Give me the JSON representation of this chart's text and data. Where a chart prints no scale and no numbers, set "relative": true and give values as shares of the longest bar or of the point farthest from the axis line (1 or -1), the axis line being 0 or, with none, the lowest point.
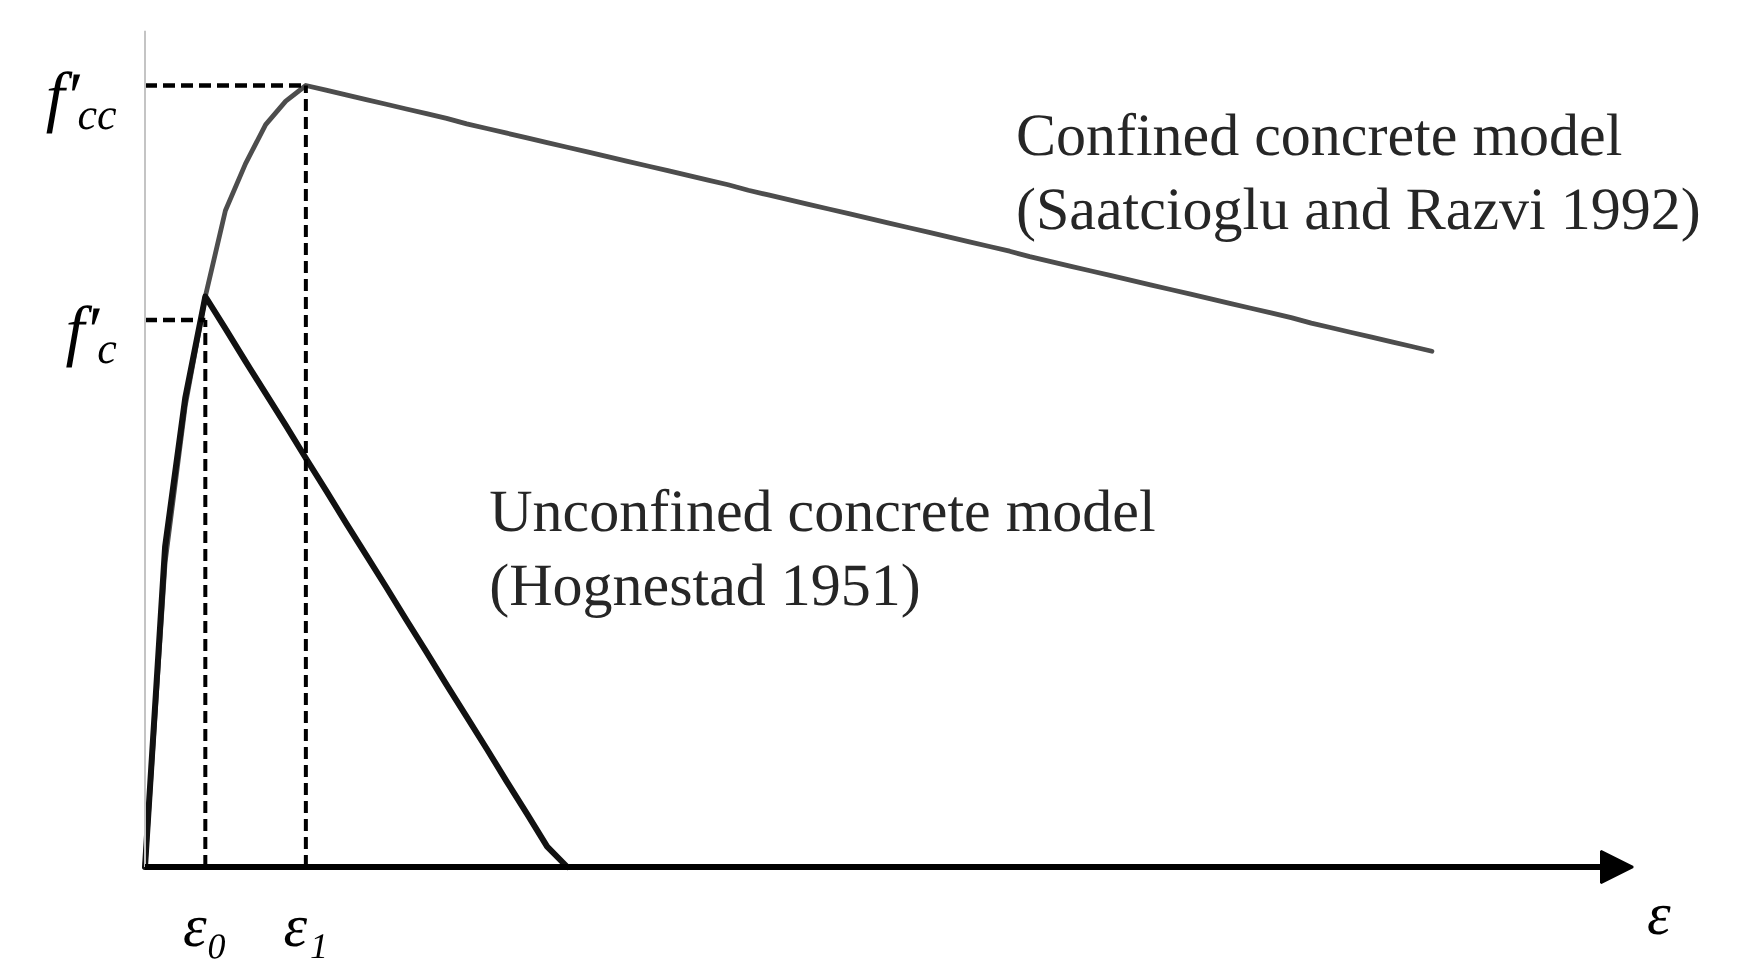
{
  "chart_data": {
    "type": "line",
    "relative": true,
    "xlabel": "ε",
    "line_style": "solid",
    "categories": [
      null,
      null,
      null,
      "ε₀",
      null,
      null,
      null,
      null,
      "ε₁",
      null,
      null,
      null,
      null,
      null,
      null,
      null,
      null,
      null,
      null,
      null,
      null,
      null,
      null,
      null,
      null,
      null,
      null,
      null,
      null,
      null,
      null,
      null,
      null,
      null,
      null,
      null,
      null,
      null,
      null,
      null,
      null,
      null,
      null,
      null,
      null,
      null,
      null,
      null,
      null,
      null,
      null,
      null,
      null,
      null,
      null,
      null,
      null,
      null,
      null,
      null,
      null,
      null,
      null,
      null,
      null,
      null,
      null,
      null,
      null,
      null,
      null,
      null,
      null,
      null,
      null
    ],
    "series": [
      {
        "name": "Confined concrete model\n(Saatcioglu and Razvi 1992)",
        "color": "#4d4d4d",
        "values": [
          0,
          0.39,
          0.59,
          0.73,
          0.84,
          0.9,
          0.95,
          0.98,
          1,
          0.994,
          0.988,
          0.982,
          0.976,
          0.97,
          0.964,
          0.958,
          0.951,
          0.945,
          0.939,
          0.933,
          0.927,
          0.921,
          0.915,
          0.909,
          0.903,
          0.897,
          0.891,
          0.885,
          0.879,
          0.873,
          0.866,
          0.86,
          0.854,
          0.848,
          0.842,
          0.836,
          0.83,
          0.824,
          0.818,
          0.812,
          0.806,
          0.8,
          0.794,
          0.788,
          0.781,
          0.775,
          0.769,
          0.763,
          0.757,
          0.751,
          0.745,
          0.739,
          0.733,
          0.727,
          0.721,
          0.715,
          0.709,
          0.703,
          0.696,
          0.69,
          0.684,
          0.678,
          0.672,
          0.666,
          0.66,
          null,
          null,
          null,
          null,
          null,
          null,
          null,
          null,
          null,
          null
        ]
      },
      {
        "name": "Unconfined concrete model\n(Hognestad 1951)",
        "color": "#111111",
        "values": [
          0,
          0.41,
          0.6,
          0.73,
          0.689,
          0.647,
          0.606,
          0.565,
          0.523,
          0.482,
          0.44,
          0.399,
          0.358,
          0.316,
          0.275,
          0.233,
          0.192,
          0.151,
          0.109,
          0.068,
          0.026,
          0,
          null,
          null,
          null,
          null,
          null,
          null,
          null,
          null,
          null,
          null,
          null,
          null,
          null,
          null,
          null,
          null,
          null,
          null,
          null,
          null,
          null,
          null,
          null,
          null,
          null,
          null,
          null,
          null,
          null,
          null,
          null,
          null,
          null,
          null,
          null,
          null,
          null,
          null,
          null,
          null,
          null,
          null,
          null,
          null,
          null,
          null,
          null,
          null,
          null,
          null,
          null,
          null,
          null
        ]
      }
    ],
    "ref_lines": [
      {
        "axis": "x",
        "value": "ε₀",
        "line_style": "dashed"
      },
      {
        "axis": "x",
        "value": "ε₁",
        "line_style": "dashed"
      },
      {
        "axis": "y",
        "value": 0.7,
        "label": "f′$_{c}$",
        "line_style": "dashed"
      },
      {
        "axis": "y",
        "value": 1,
        "label": "f′$_{cc}$",
        "line_style": "dashed"
      }
    ]
  }
}
